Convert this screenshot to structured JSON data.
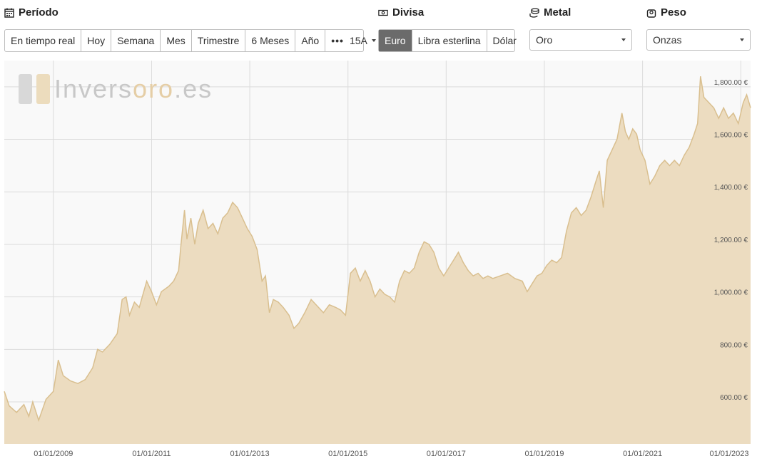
{
  "periodo": {
    "title": "Período",
    "buttons": [
      "En tiempo real",
      "Hoy",
      "Semana",
      "Mes",
      "Trimestre",
      "6 Meses",
      "Año"
    ],
    "more_label": "15A"
  },
  "divisa": {
    "title": "Divisa",
    "buttons": [
      "Euro",
      "Libra esterlina",
      "Dólar"
    ],
    "active": "Euro"
  },
  "metal": {
    "title": "Metal",
    "selected": "Oro"
  },
  "peso": {
    "title": "Peso",
    "selected": "Onzas"
  },
  "watermark": {
    "part1": "Invers",
    "part2": "oro",
    "part3": ".es"
  },
  "colors": {
    "area_fill": "#ecdcc0",
    "line": "#d9bf8f",
    "grid": "#dcdcdc",
    "active_button": "#6b6b6b",
    "watermark_gray": "#c8c8c8",
    "watermark_gold": "#e5cea6"
  },
  "chart_data": {
    "type": "area",
    "ylim": [
      440,
      1900
    ],
    "y_ticks": [
      {
        "value": 600,
        "label": "600.00 €"
      },
      {
        "value": 800,
        "label": "800.00 €"
      },
      {
        "value": 1000,
        "label": "1,000.00 €"
      },
      {
        "value": 1200,
        "label": "1,200.00 €"
      },
      {
        "value": 1400,
        "label": "1,400.00 €"
      },
      {
        "value": 1600,
        "label": "1,600.00 €"
      },
      {
        "value": 1800,
        "label": "1,800.00 €"
      }
    ],
    "x_range": [
      2008.0,
      2023.2
    ],
    "x_ticks": [
      {
        "value": 2009,
        "label": "01/01/2009"
      },
      {
        "value": 2011,
        "label": "01/01/2011"
      },
      {
        "value": 2013,
        "label": "01/01/2013"
      },
      {
        "value": 2015,
        "label": "01/01/2015"
      },
      {
        "value": 2017,
        "label": "01/01/2017"
      },
      {
        "value": 2019,
        "label": "01/01/2019"
      },
      {
        "value": 2021,
        "label": "01/01/2021"
      },
      {
        "value": 2023,
        "label": "01/01/2023"
      }
    ],
    "series": [
      {
        "points": [
          [
            2008.0,
            640
          ],
          [
            2008.1,
            585
          ],
          [
            2008.25,
            560
          ],
          [
            2008.4,
            590
          ],
          [
            2008.5,
            545
          ],
          [
            2008.58,
            600
          ],
          [
            2008.7,
            530
          ],
          [
            2008.85,
            610
          ],
          [
            2009.0,
            640
          ],
          [
            2009.1,
            760
          ],
          [
            2009.2,
            700
          ],
          [
            2009.35,
            680
          ],
          [
            2009.5,
            670
          ],
          [
            2009.65,
            685
          ],
          [
            2009.8,
            730
          ],
          [
            2009.9,
            800
          ],
          [
            2010.0,
            790
          ],
          [
            2010.15,
            820
          ],
          [
            2010.3,
            860
          ],
          [
            2010.4,
            990
          ],
          [
            2010.48,
            1000
          ],
          [
            2010.55,
            930
          ],
          [
            2010.65,
            980
          ],
          [
            2010.75,
            960
          ],
          [
            2010.9,
            1060
          ],
          [
            2011.0,
            1020
          ],
          [
            2011.1,
            970
          ],
          [
            2011.2,
            1020
          ],
          [
            2011.35,
            1040
          ],
          [
            2011.45,
            1060
          ],
          [
            2011.55,
            1100
          ],
          [
            2011.6,
            1200
          ],
          [
            2011.67,
            1330
          ],
          [
            2011.72,
            1220
          ],
          [
            2011.8,
            1300
          ],
          [
            2011.88,
            1200
          ],
          [
            2011.95,
            1280
          ],
          [
            2012.05,
            1330
          ],
          [
            2012.15,
            1260
          ],
          [
            2012.25,
            1280
          ],
          [
            2012.35,
            1240
          ],
          [
            2012.45,
            1300
          ],
          [
            2012.55,
            1320
          ],
          [
            2012.65,
            1360
          ],
          [
            2012.75,
            1340
          ],
          [
            2012.85,
            1300
          ],
          [
            2012.95,
            1260
          ],
          [
            2013.05,
            1230
          ],
          [
            2013.15,
            1180
          ],
          [
            2013.25,
            1060
          ],
          [
            2013.32,
            1080
          ],
          [
            2013.4,
            940
          ],
          [
            2013.48,
            990
          ],
          [
            2013.58,
            980
          ],
          [
            2013.68,
            960
          ],
          [
            2013.8,
            930
          ],
          [
            2013.9,
            880
          ],
          [
            2014.0,
            900
          ],
          [
            2014.12,
            940
          ],
          [
            2014.25,
            990
          ],
          [
            2014.4,
            960
          ],
          [
            2014.5,
            940
          ],
          [
            2014.62,
            970
          ],
          [
            2014.75,
            960
          ],
          [
            2014.85,
            950
          ],
          [
            2014.95,
            930
          ],
          [
            2015.05,
            1090
          ],
          [
            2015.15,
            1110
          ],
          [
            2015.25,
            1060
          ],
          [
            2015.35,
            1100
          ],
          [
            2015.45,
            1060
          ],
          [
            2015.55,
            1000
          ],
          [
            2015.65,
            1030
          ],
          [
            2015.75,
            1010
          ],
          [
            2015.85,
            1000
          ],
          [
            2015.95,
            980
          ],
          [
            2016.05,
            1060
          ],
          [
            2016.15,
            1100
          ],
          [
            2016.25,
            1090
          ],
          [
            2016.35,
            1110
          ],
          [
            2016.45,
            1170
          ],
          [
            2016.55,
            1210
          ],
          [
            2016.65,
            1200
          ],
          [
            2016.75,
            1170
          ],
          [
            2016.85,
            1110
          ],
          [
            2016.95,
            1080
          ],
          [
            2017.05,
            1110
          ],
          [
            2017.15,
            1140
          ],
          [
            2017.25,
            1170
          ],
          [
            2017.35,
            1130
          ],
          [
            2017.45,
            1100
          ],
          [
            2017.55,
            1080
          ],
          [
            2017.65,
            1090
          ],
          [
            2017.75,
            1070
          ],
          [
            2017.85,
            1080
          ],
          [
            2017.95,
            1070
          ],
          [
            2018.1,
            1080
          ],
          [
            2018.25,
            1090
          ],
          [
            2018.4,
            1070
          ],
          [
            2018.55,
            1060
          ],
          [
            2018.65,
            1020
          ],
          [
            2018.75,
            1050
          ],
          [
            2018.85,
            1080
          ],
          [
            2018.95,
            1090
          ],
          [
            2019.05,
            1120
          ],
          [
            2019.15,
            1140
          ],
          [
            2019.25,
            1130
          ],
          [
            2019.35,
            1150
          ],
          [
            2019.45,
            1250
          ],
          [
            2019.55,
            1320
          ],
          [
            2019.65,
            1340
          ],
          [
            2019.75,
            1310
          ],
          [
            2019.85,
            1330
          ],
          [
            2019.95,
            1380
          ],
          [
            2020.05,
            1440
          ],
          [
            2020.12,
            1480
          ],
          [
            2020.2,
            1340
          ],
          [
            2020.28,
            1520
          ],
          [
            2020.38,
            1560
          ],
          [
            2020.48,
            1600
          ],
          [
            2020.58,
            1700
          ],
          [
            2020.65,
            1630
          ],
          [
            2020.72,
            1600
          ],
          [
            2020.8,
            1640
          ],
          [
            2020.88,
            1620
          ],
          [
            2020.95,
            1560
          ],
          [
            2021.05,
            1520
          ],
          [
            2021.15,
            1430
          ],
          [
            2021.25,
            1460
          ],
          [
            2021.35,
            1500
          ],
          [
            2021.45,
            1520
          ],
          [
            2021.55,
            1500
          ],
          [
            2021.65,
            1520
          ],
          [
            2021.75,
            1500
          ],
          [
            2021.85,
            1540
          ],
          [
            2021.95,
            1570
          ],
          [
            2022.05,
            1620
          ],
          [
            2022.12,
            1660
          ],
          [
            2022.18,
            1840
          ],
          [
            2022.25,
            1760
          ],
          [
            2022.35,
            1740
          ],
          [
            2022.45,
            1720
          ],
          [
            2022.55,
            1680
          ],
          [
            2022.65,
            1720
          ],
          [
            2022.75,
            1680
          ],
          [
            2022.85,
            1700
          ],
          [
            2022.95,
            1660
          ],
          [
            2023.05,
            1740
          ],
          [
            2023.12,
            1770
          ],
          [
            2023.2,
            1720
          ]
        ]
      }
    ]
  }
}
